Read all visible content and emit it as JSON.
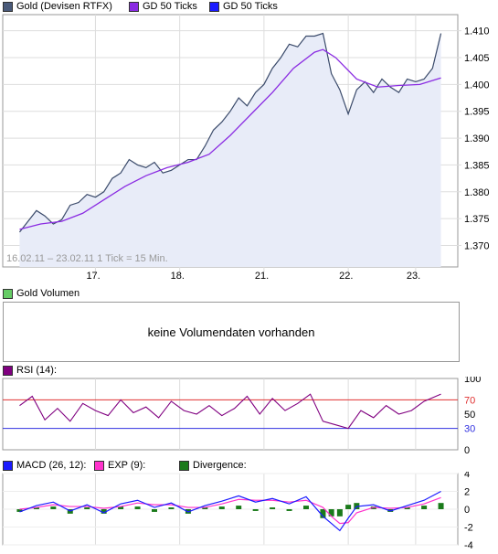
{
  "legend_main": [
    {
      "label": "Gold (Devisen RTFX)",
      "color": "#4a5a7a"
    },
    {
      "label": "GD 50 Ticks",
      "color": "#8a2be2"
    },
    {
      "label": "GD 50 Ticks",
      "color": "#1a1aff"
    }
  ],
  "volume_legend": {
    "label": "Gold Volumen",
    "color": "#66cc66"
  },
  "volume_message": "keine Volumendaten vorhanden",
  "rsi_legend": {
    "label": "RSI (14):",
    "color": "#800080"
  },
  "macd_legend": [
    {
      "label": "MACD (26, 12):",
      "color": "#1a1aff"
    },
    {
      "label": "EXP (9):",
      "color": "#ff33cc"
    },
    {
      "label": "Divergence:",
      "color": "#1a7a1a"
    }
  ],
  "chart_data": [
    {
      "type": "line",
      "date_range_label": "16.02.11 – 23.02.11   1 Tick = 15 Min.",
      "x_tick_labels": [
        "17.",
        "18.",
        "21.",
        "22.",
        "23."
      ],
      "y_tick_labels": [
        "1.370",
        "1.375",
        "1.380",
        "1.385",
        "1.390",
        "1.395",
        "1.400",
        "1.405",
        "1.410"
      ],
      "ylim": [
        1.366,
        1.413
      ],
      "series": [
        {
          "name": "Gold (Devisen RTFX)",
          "color": "#3a4a6a",
          "x": [
            0,
            2,
            4,
            6,
            8,
            10,
            12,
            14,
            16,
            18,
            20,
            22,
            24,
            26,
            28,
            30,
            32,
            34,
            36,
            38,
            40,
            42,
            44,
            46,
            48,
            50,
            52,
            54,
            56,
            58,
            60,
            62,
            64,
            66,
            68,
            70,
            72,
            74,
            76,
            78,
            80,
            82,
            84,
            86,
            88,
            90,
            92,
            94,
            96,
            98,
            100
          ],
          "values": [
            1.3725,
            1.3745,
            1.3765,
            1.3755,
            1.374,
            1.3748,
            1.3775,
            1.378,
            1.3795,
            1.379,
            1.38,
            1.3825,
            1.3835,
            1.386,
            1.385,
            1.3845,
            1.3855,
            1.3835,
            1.384,
            1.385,
            1.386,
            1.386,
            1.3885,
            1.3915,
            1.393,
            1.395,
            1.3975,
            1.396,
            1.3985,
            1.4,
            1.403,
            1.405,
            1.4075,
            1.407,
            1.409,
            1.409,
            1.4095,
            1.402,
            1.399,
            1.3945,
            1.399,
            1.4005,
            1.3985,
            1.401,
            1.3995,
            1.3985,
            1.401,
            1.4005,
            1.401,
            1.403,
            1.4095
          ]
        },
        {
          "name": "GD 50 Ticks",
          "color": "#8a2be2",
          "x": [
            0,
            5,
            10,
            15,
            20,
            25,
            30,
            35,
            40,
            45,
            50,
            55,
            60,
            65,
            70,
            72,
            75,
            80,
            85,
            90,
            95,
            100
          ],
          "values": [
            1.373,
            1.374,
            1.3745,
            1.376,
            1.3785,
            1.381,
            1.383,
            1.3845,
            1.3855,
            1.387,
            1.3905,
            1.3945,
            1.3985,
            1.403,
            1.406,
            1.4065,
            1.405,
            1.401,
            1.3995,
            1.3998,
            1.4,
            1.4012
          ]
        }
      ]
    },
    {
      "type": "line",
      "y_tick_labels": [
        "0",
        "30",
        "50",
        "70",
        "100"
      ],
      "ylim": [
        0,
        100
      ],
      "reference_lines": [
        {
          "value": 70,
          "color": "#e03030"
        },
        {
          "value": 30,
          "color": "#3030e0"
        }
      ],
      "series": [
        {
          "name": "RSI (14)",
          "color": "#800080",
          "x": [
            0,
            3,
            6,
            9,
            12,
            15,
            18,
            21,
            24,
            27,
            30,
            33,
            36,
            39,
            42,
            45,
            48,
            51,
            54,
            57,
            60,
            63,
            66,
            69,
            72,
            75,
            78,
            81,
            84,
            87,
            90,
            93,
            96,
            100
          ],
          "values": [
            62,
            75,
            42,
            58,
            40,
            65,
            55,
            48,
            70,
            52,
            60,
            45,
            68,
            55,
            50,
            62,
            48,
            58,
            75,
            50,
            72,
            55,
            65,
            78,
            40,
            35,
            30,
            55,
            45,
            62,
            50,
            55,
            68,
            78
          ]
        }
      ]
    },
    {
      "type": "line",
      "y_tick_labels": [
        "-4",
        "-2",
        "0",
        "2",
        "4"
      ],
      "ylim": [
        -4,
        4
      ],
      "series": [
        {
          "name": "MACD (26, 12)",
          "color": "#1a1aff",
          "x": [
            0,
            4,
            8,
            12,
            16,
            20,
            24,
            28,
            32,
            36,
            40,
            44,
            48,
            52,
            56,
            60,
            64,
            68,
            72,
            74,
            76,
            78,
            80,
            84,
            88,
            92,
            96,
            100
          ],
          "values": [
            -0.3,
            0.4,
            0.8,
            -0.2,
            0.5,
            -0.4,
            0.6,
            1.0,
            0.2,
            0.7,
            -0.3,
            0.4,
            0.9,
            1.5,
            0.8,
            1.2,
            0.6,
            1.4,
            -0.8,
            -1.6,
            -2.4,
            -1.0,
            0.3,
            0.5,
            -0.2,
            0.4,
            1.0,
            2.0
          ]
        },
        {
          "name": "EXP (9)",
          "color": "#ff33cc",
          "x": [
            0,
            4,
            8,
            12,
            16,
            20,
            24,
            28,
            32,
            36,
            40,
            44,
            48,
            52,
            56,
            60,
            64,
            68,
            72,
            74,
            76,
            78,
            80,
            84,
            88,
            92,
            96,
            100
          ],
          "values": [
            0.0,
            0.2,
            0.5,
            0.3,
            0.3,
            0.1,
            0.3,
            0.7,
            0.5,
            0.5,
            0.2,
            0.2,
            0.6,
            1.1,
            1.0,
            1.0,
            0.8,
            1.0,
            0.2,
            -0.8,
            -1.6,
            -1.5,
            -0.4,
            0.2,
            0.1,
            0.2,
            0.6,
            1.3
          ]
        },
        {
          "name": "Divergence",
          "color": "#1a7a1a",
          "x": [
            0,
            4,
            8,
            12,
            16,
            20,
            24,
            28,
            32,
            36,
            40,
            44,
            48,
            52,
            56,
            60,
            64,
            68,
            72,
            74,
            76,
            78,
            80,
            84,
            88,
            92,
            96,
            100
          ],
          "values": [
            -0.3,
            0.2,
            0.3,
            -0.5,
            0.2,
            -0.5,
            0.3,
            0.3,
            -0.3,
            0.2,
            -0.5,
            0.2,
            0.3,
            0.4,
            -0.2,
            0.2,
            -0.2,
            0.4,
            -1.0,
            -0.8,
            -0.8,
            0.5,
            0.7,
            0.3,
            -0.3,
            0.2,
            0.4,
            0.7
          ]
        }
      ]
    }
  ]
}
